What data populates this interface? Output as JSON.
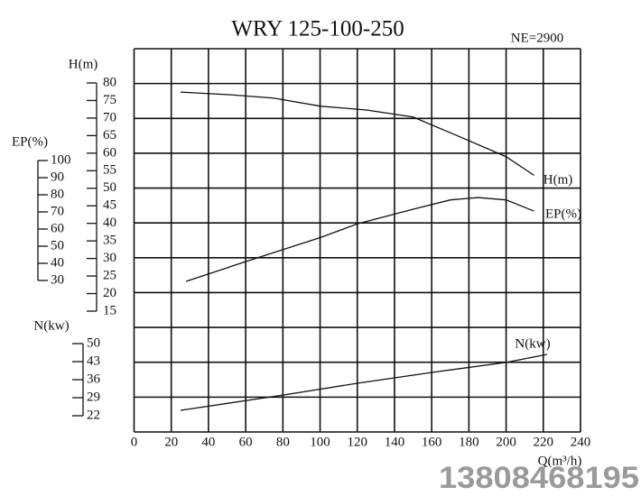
{
  "chart_data": {
    "type": "line",
    "title": "WRY 125-100-250",
    "annotation": "NE=2900",
    "watermark": "13808468195",
    "x_label": "Q(m³/h)",
    "xlim": [
      0,
      240
    ],
    "xticks": [
      0,
      20,
      40,
      60,
      80,
      100,
      120,
      140,
      160,
      180,
      200,
      220,
      240
    ],
    "axes": [
      {
        "id": "H",
        "label": "H(m)",
        "lim": [
          15,
          80
        ],
        "ticks": [
          80,
          75,
          70,
          65,
          60,
          55,
          50,
          45,
          40,
          35,
          30,
          25,
          20,
          15
        ]
      },
      {
        "id": "EP",
        "label": "EP(%)",
        "lim": [
          30,
          100
        ],
        "ticks": [
          100,
          90,
          80,
          70,
          60,
          50,
          40,
          30
        ]
      },
      {
        "id": "N",
        "label": "N(kw)",
        "lim": [
          22,
          50
        ],
        "ticks": [
          50,
          43,
          36,
          29,
          22
        ]
      }
    ],
    "series": [
      {
        "name": "H(m)",
        "axis": "H",
        "color": "#111111",
        "x": [
          25,
          50,
          75,
          100,
          125,
          150,
          175,
          200,
          215
        ],
        "values": [
          77.4,
          76.7,
          75.7,
          73.4,
          72.3,
          70.3,
          64.7,
          59,
          53.7
        ]
      },
      {
        "name": "EP(%)",
        "axis": "EP",
        "color": "#111111",
        "x": [
          28,
          60,
          100,
          120,
          150,
          170,
          185,
          200,
          215
        ],
        "values": [
          29.5,
          41,
          55,
          63,
          71.6,
          77,
          78.4,
          77,
          70.5
        ]
      },
      {
        "name": "N(kw)",
        "axis": "N",
        "color": "#111111",
        "x": [
          25,
          80,
          120,
          160,
          200,
          222
        ],
        "values": [
          24.1,
          30,
          34.6,
          38.8,
          42.7,
          45.8
        ]
      }
    ]
  }
}
